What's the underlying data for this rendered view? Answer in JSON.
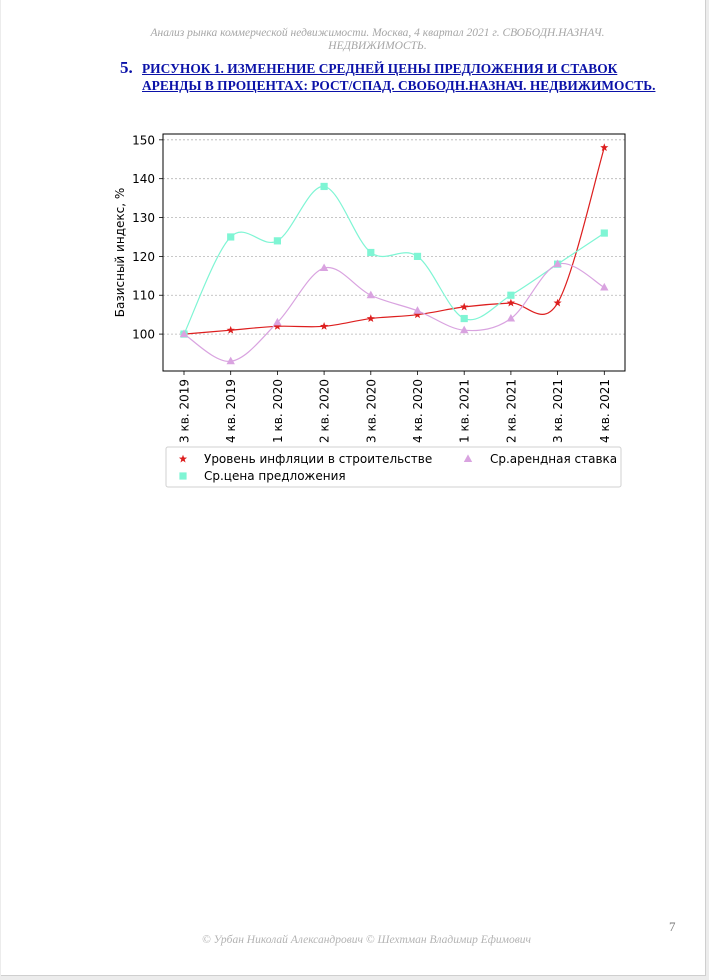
{
  "document": {
    "running_header": "Анализ рынка коммерческой недвижимости.  Москва,  4 квартал 2021 г.   СВОБОДН.НАЗНАЧ. НЕДВИЖИМОСТЬ.",
    "section_number": "5.",
    "figure_title": "РИСУНОК 1. ИЗМЕНЕНИЕ СРЕДНЕЙ ЦЕНЫ ПРЕДЛОЖЕНИЯ И СТАВОК АРЕНДЫ В ПРОЦЕНТАХ: РОСТ/СПАД. СВОБОДН.НАЗНАЧ. НЕДВИЖИМОСТЬ.",
    "footer_authors": "© Урбан Николай Александрович   © Шехтман Владимир Ефимович",
    "page_number": "7"
  },
  "chart_data": {
    "type": "line",
    "title": "",
    "xlabel": "",
    "ylabel": "Базисный индекс, %",
    "categories": [
      "3 кв. 2019",
      "4 кв. 2019",
      "1 кв. 2020",
      "2 кв. 2020",
      "3 кв. 2020",
      "4 кв. 2020",
      "1 кв. 2021",
      "2 кв. 2021",
      "3 кв. 2021",
      "4 кв. 2021"
    ],
    "ylim": [
      90.5,
      151.5
    ],
    "yticks": [
      100,
      110,
      120,
      130,
      140,
      150
    ],
    "grid": "horizontal dotted",
    "legend_position": "below",
    "smooth_lines": true,
    "series": [
      {
        "name": "Уровень инфляции в строительстве",
        "marker": "star",
        "color": "#dd1f1f",
        "values": [
          100,
          101,
          102,
          102,
          104,
          105,
          107,
          108,
          108,
          148
        ]
      },
      {
        "name": "Ср.цена предложения",
        "marker": "square",
        "color": "#7ff5d4",
        "values": [
          100,
          125,
          124,
          138,
          121,
          120,
          104,
          110,
          118,
          126
        ]
      },
      {
        "name": "Ср.арендная ставка",
        "marker": "triangle",
        "color": "#d9a3e0",
        "values": [
          100,
          93,
          103,
          117,
          110,
          106,
          101,
          104,
          118,
          112
        ]
      }
    ]
  }
}
